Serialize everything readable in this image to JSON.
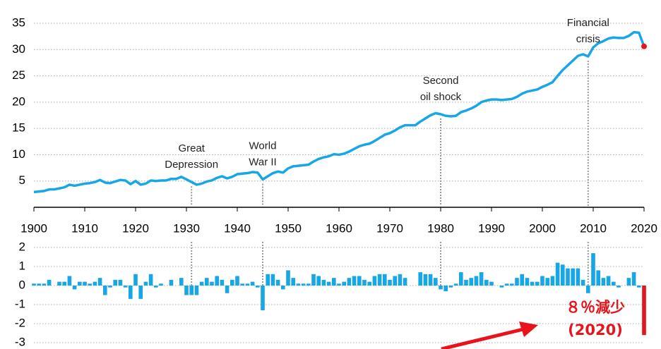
{
  "chart_data": [
    {
      "type": "line",
      "color": "#17a6e6",
      "highlight_color": "#e8141b",
      "x": [
        1900,
        1901,
        1902,
        1903,
        1904,
        1905,
        1906,
        1907,
        1908,
        1909,
        1910,
        1911,
        1912,
        1913,
        1914,
        1915,
        1916,
        1917,
        1918,
        1919,
        1920,
        1921,
        1922,
        1923,
        1924,
        1925,
        1926,
        1927,
        1928,
        1929,
        1930,
        1931,
        1932,
        1933,
        1934,
        1935,
        1936,
        1937,
        1938,
        1939,
        1940,
        1941,
        1942,
        1943,
        1944,
        1945,
        1946,
        1947,
        1948,
        1949,
        1950,
        1951,
        1952,
        1953,
        1954,
        1955,
        1956,
        1957,
        1958,
        1959,
        1960,
        1961,
        1962,
        1963,
        1964,
        1965,
        1966,
        1967,
        1968,
        1969,
        1970,
        1971,
        1972,
        1973,
        1974,
        1975,
        1976,
        1977,
        1978,
        1979,
        1980,
        1981,
        1982,
        1983,
        1984,
        1985,
        1986,
        1987,
        1988,
        1989,
        1990,
        1991,
        1992,
        1993,
        1994,
        1995,
        1996,
        1997,
        1998,
        1999,
        2000,
        2001,
        2002,
        2003,
        2004,
        2005,
        2006,
        2007,
        2008,
        2009,
        2010,
        2011,
        2012,
        2013,
        2014,
        2015,
        2016,
        2017,
        2018,
        2019,
        2020
      ],
      "values": [
        2.9,
        3.0,
        3.1,
        3.4,
        3.4,
        3.6,
        3.8,
        4.3,
        4.1,
        4.3,
        4.5,
        4.6,
        4.8,
        5.2,
        4.7,
        4.6,
        4.9,
        5.2,
        5.1,
        4.4,
        5.0,
        4.3,
        4.5,
        5.1,
        5.0,
        5.1,
        5.1,
        5.4,
        5.4,
        5.8,
        5.3,
        4.8,
        4.3,
        4.5,
        4.9,
        5.1,
        5.6,
        5.9,
        5.5,
        5.8,
        6.3,
        6.4,
        6.5,
        6.7,
        6.6,
        5.3,
        5.9,
        6.5,
        6.8,
        6.6,
        7.4,
        7.8,
        7.9,
        8.0,
        8.1,
        8.7,
        9.2,
        9.5,
        9.7,
        10.1,
        10.0,
        10.2,
        10.6,
        11.1,
        11.6,
        11.9,
        12.1,
        12.6,
        13.2,
        13.8,
        14.1,
        14.6,
        15.2,
        15.6,
        15.6,
        15.6,
        16.3,
        16.9,
        17.5,
        17.9,
        17.7,
        17.4,
        17.3,
        17.4,
        18.1,
        18.4,
        18.8,
        19.3,
        20.0,
        20.3,
        20.5,
        20.5,
        20.4,
        20.5,
        20.6,
        21.0,
        21.6,
        22.0,
        22.2,
        22.4,
        22.9,
        23.3,
        23.8,
        25.0,
        26.1,
        27.0,
        27.9,
        28.8,
        29.1,
        28.7,
        30.4,
        31.2,
        31.6,
        32.1,
        32.3,
        32.2,
        32.2,
        32.6,
        33.3,
        33.2,
        30.6
      ],
      "xlim": [
        1900,
        2020
      ],
      "xticks": [
        1900,
        1910,
        1920,
        1930,
        1940,
        1950,
        1960,
        1970,
        1980,
        1990,
        2000,
        2010,
        2020
      ],
      "ylim": [
        0,
        35
      ],
      "yticks": [
        5,
        10,
        15,
        20,
        25,
        30,
        35
      ],
      "grid": true,
      "annotations": [
        {
          "lines": [
            "Great",
            "Depression"
          ],
          "x": 1931
        },
        {
          "lines": [
            "World",
            "War II"
          ],
          "x": 1945
        },
        {
          "lines": [
            "Second",
            "oil shock"
          ],
          "x": 1980
        },
        {
          "lines": [
            "Financial",
            "crisis"
          ],
          "x": 2009
        }
      ]
    },
    {
      "type": "bar",
      "color": "#17a6e6",
      "highlight_color": "#e8141b",
      "x": [
        1900,
        1901,
        1902,
        1903,
        1904,
        1905,
        1906,
        1907,
        1908,
        1909,
        1910,
        1911,
        1912,
        1913,
        1914,
        1915,
        1916,
        1917,
        1918,
        1919,
        1920,
        1921,
        1922,
        1923,
        1924,
        1925,
        1926,
        1927,
        1928,
        1929,
        1930,
        1931,
        1932,
        1933,
        1934,
        1935,
        1936,
        1937,
        1938,
        1939,
        1940,
        1941,
        1942,
        1943,
        1944,
        1945,
        1946,
        1947,
        1948,
        1949,
        1950,
        1951,
        1952,
        1953,
        1954,
        1955,
        1956,
        1957,
        1958,
        1959,
        1960,
        1961,
        1962,
        1963,
        1964,
        1965,
        1966,
        1967,
        1968,
        1969,
        1970,
        1971,
        1972,
        1973,
        1974,
        1975,
        1976,
        1977,
        1978,
        1979,
        1980,
        1981,
        1982,
        1983,
        1984,
        1985,
        1986,
        1987,
        1988,
        1989,
        1990,
        1991,
        1992,
        1993,
        1994,
        1995,
        1996,
        1997,
        1998,
        1999,
        2000,
        2001,
        2002,
        2003,
        2004,
        2005,
        2006,
        2007,
        2008,
        2009,
        2010,
        2011,
        2012,
        2013,
        2014,
        2015,
        2016,
        2017,
        2018,
        2019,
        2020
      ],
      "values": [
        0.1,
        0.1,
        0.1,
        0.3,
        0.0,
        0.2,
        0.2,
        0.5,
        -0.2,
        0.2,
        0.2,
        0.1,
        0.2,
        0.4,
        -0.5,
        -0.1,
        0.3,
        0.3,
        -0.1,
        -0.7,
        0.6,
        -0.7,
        0.2,
        0.6,
        -0.1,
        0.1,
        0.0,
        0.3,
        0.0,
        0.4,
        -0.5,
        -0.5,
        -0.5,
        0.2,
        0.4,
        0.2,
        0.5,
        0.3,
        -0.4,
        0.3,
        0.5,
        0.1,
        0.1,
        0.2,
        -0.1,
        -1.3,
        0.6,
        0.6,
        0.3,
        -0.2,
        0.8,
        0.4,
        0.1,
        0.1,
        0.1,
        0.6,
        0.5,
        0.3,
        0.2,
        0.4,
        0.1,
        0.2,
        0.4,
        0.5,
        0.5,
        0.3,
        0.2,
        0.5,
        0.6,
        0.6,
        0.3,
        0.5,
        0.6,
        0.4,
        0.0,
        0.0,
        0.7,
        0.6,
        0.6,
        0.4,
        -0.2,
        -0.3,
        -0.1,
        0.1,
        0.7,
        0.3,
        0.4,
        0.5,
        0.7,
        0.3,
        0.2,
        0.0,
        -0.1,
        0.1,
        0.1,
        0.4,
        0.6,
        0.4,
        0.2,
        0.2,
        0.5,
        0.4,
        0.5,
        1.2,
        1.1,
        0.9,
        0.9,
        0.9,
        0.3,
        -0.4,
        1.7,
        0.8,
        0.4,
        0.5,
        0.2,
        -0.1,
        0.0,
        0.4,
        0.7,
        -0.1,
        -2.6
      ],
      "xlim": [
        1900,
        2020
      ],
      "ylim": [
        -3,
        2
      ],
      "yticks": [
        -3,
        -2,
        -1,
        0,
        1,
        2
      ],
      "grid": true,
      "annotation": {
        "lines": [
          "８％減少",
          "(2020)"
        ]
      }
    }
  ]
}
